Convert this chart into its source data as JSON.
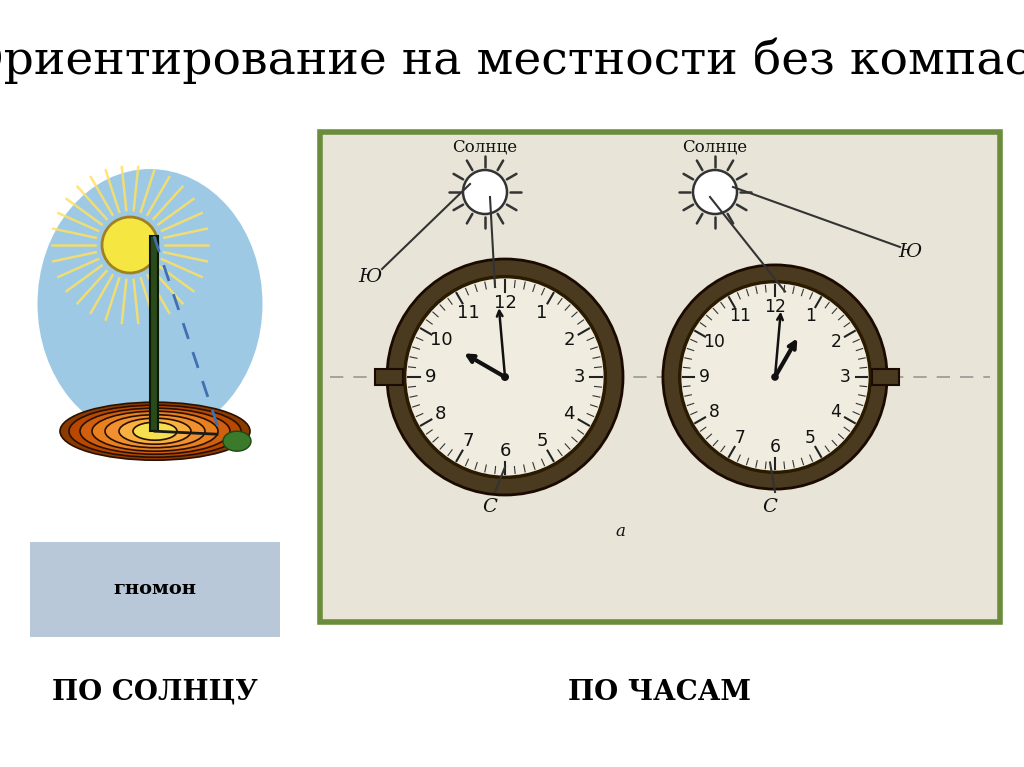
{
  "title": "Ориентирование на местности без компаса",
  "label_left": "ПО СОЛНЦУ",
  "label_right": "ПО ЧАСАМ",
  "gnomon_label": "гномон",
  "bg_color": "#ffffff",
  "title_fontsize": 34,
  "label_fontsize": 20,
  "gnomon_fontsize": 14,
  "title_color": "#000000",
  "label_color": "#000000",
  "sky_color": "#7DB8DC",
  "sun_color": "#F5E642",
  "orange1": "#C84B00",
  "orange2": "#E06010",
  "orange3": "#F08020",
  "orange4": "#F8A030",
  "yellow_center": "#F5E642",
  "ground_color": "#B8C8D8",
  "gnomon_color": "#2A4A1A",
  "shadow_color": "#4070B0",
  "bush_color": "#3A7A2A",
  "panel_bg": "#E8E4D8",
  "panel_border": "#6B8C3A",
  "clock_bezel": "#4A3A20",
  "clock_face": "#F0EDE0"
}
